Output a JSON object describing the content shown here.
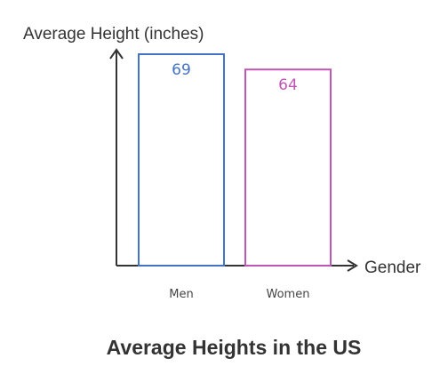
{
  "chart_data": {
    "type": "bar",
    "title": "Average Heights in the US",
    "xlabel": "Gender",
    "ylabel": "Average Height (inches)",
    "categories": [
      "Men",
      "Women"
    ],
    "values": [
      69,
      64
    ],
    "ylim": [
      0,
      70
    ],
    "grid": false,
    "legend": "none",
    "colors": [
      "#4472C4",
      "#C055B4"
    ]
  }
}
